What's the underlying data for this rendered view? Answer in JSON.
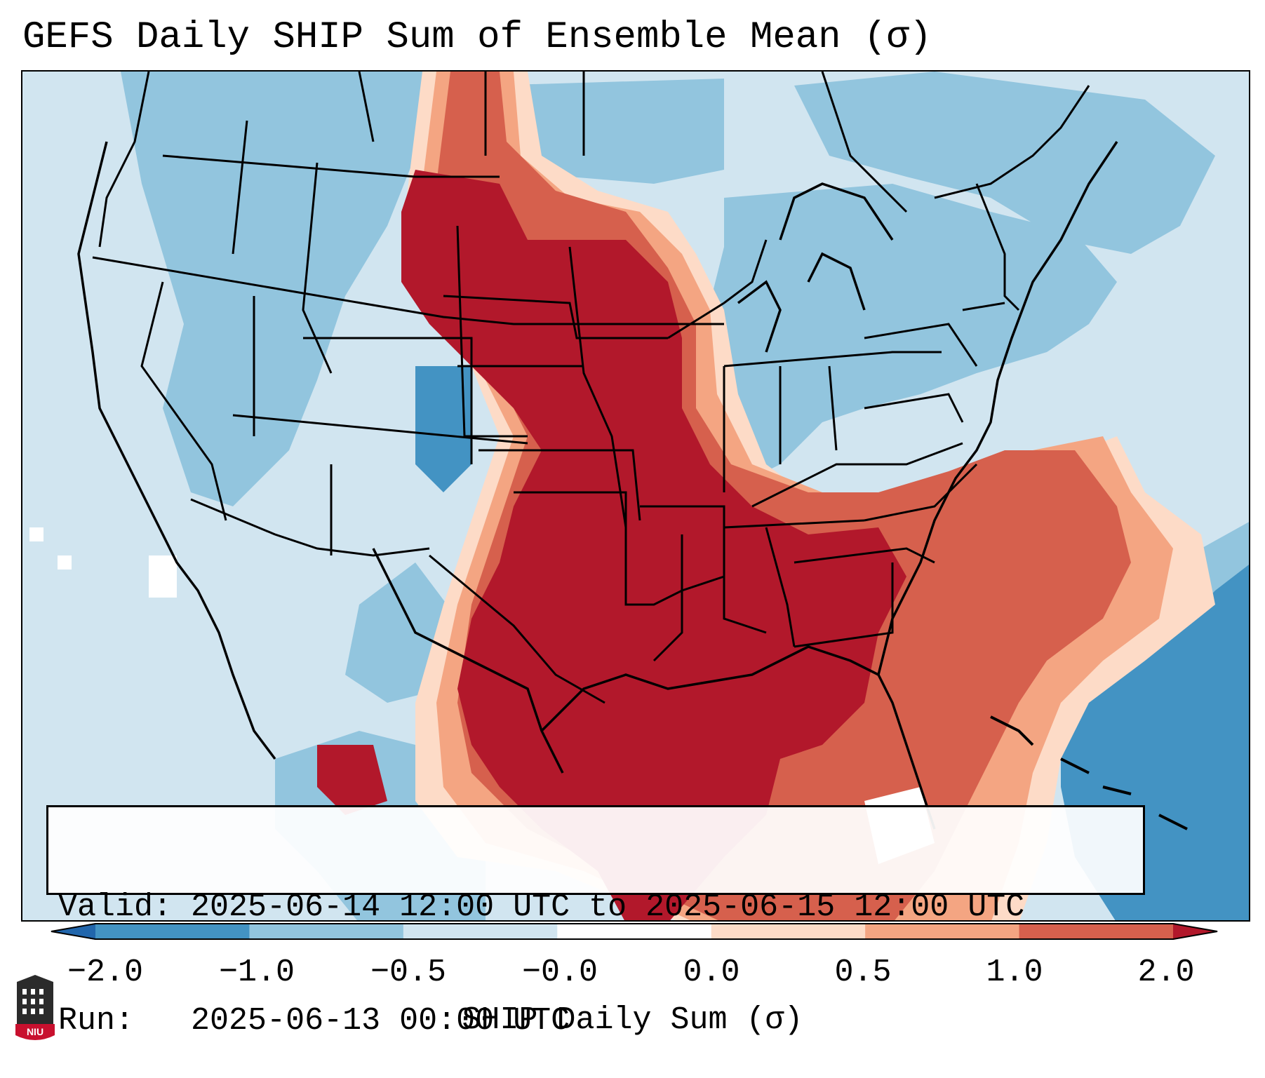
{
  "title": "GEFS Daily SHIP Sum of Ensemble Mean (σ)",
  "info": {
    "valid_label": "Valid:",
    "valid_value": "2025-06-14 12:00 UTC to 2025-06-15 12:00 UTC",
    "run_label": "Run:",
    "run_value": "2025-06-13 00:00 UTC"
  },
  "colorbar": {
    "label": "SHIP Daily Sum (σ)",
    "ticks": [
      "−2.0",
      "−1.0",
      "−0.5",
      "−0.0",
      "0.0",
      "0.5",
      "1.0",
      "2.0"
    ],
    "colors": [
      "#2166ac",
      "#4393c3",
      "#92c5de",
      "#d1e5f0",
      "#ffffff",
      "#fddbc7",
      "#f4a582",
      "#d6604d",
      "#b2182b"
    ],
    "extend": "both"
  },
  "map": {
    "projection": "Lambert conformal, CONUS",
    "field": "SHIP daily sum standardized anomaly",
    "colors": {
      "very_high": "#b2182b",
      "high": "#d6604d",
      "mid_high": "#f4a582",
      "low_high": "#fddbc7",
      "near_zero": "#ffffff",
      "low_neg": "#d1e5f0",
      "mid_neg": "#92c5de",
      "strong_neg": "#4393c3",
      "very_neg": "#2166ac"
    }
  },
  "logo": {
    "icon": "niu-logo-icon",
    "text": "NIU"
  }
}
